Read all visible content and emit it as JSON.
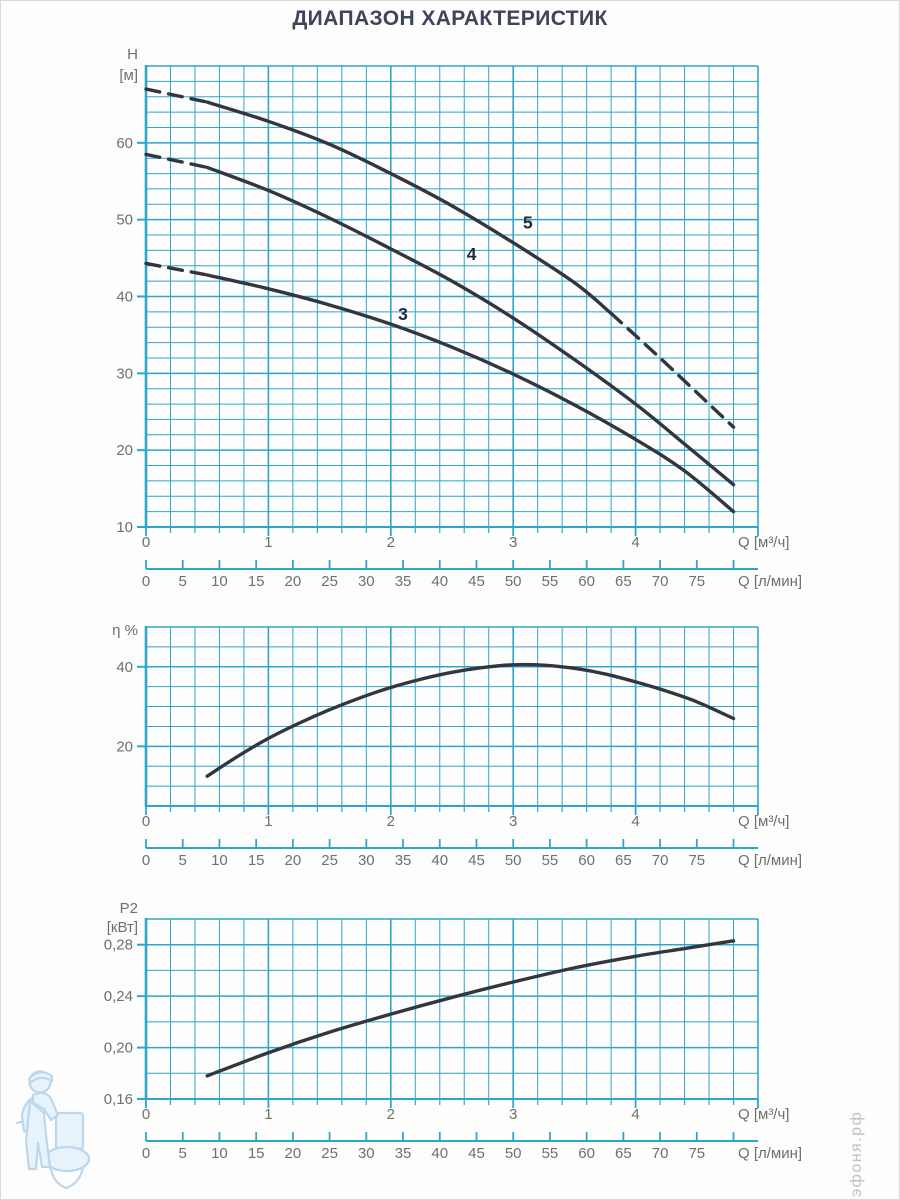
{
  "page": {
    "title": "ДИАПАЗОН ХАРАКТЕРИСТИК",
    "watermark_vertical": "эфоня.рф",
    "watermark_icon": "plumber-leaning-on-toilet"
  },
  "colors": {
    "grid": "#2ea6cb",
    "axis_text": "#6f6f6f",
    "title_text": "#3e4459",
    "curve": "#33363e",
    "curve_label": "#1f2840",
    "watermark_text": "#c1c1c1",
    "illustration_stroke": "#b6d2ea",
    "illustration_fill": "#e6f1fa",
    "background": "#fdfdfd",
    "frame": "#d8d8d8"
  },
  "x_axis": {
    "m3h_label": "Q [м³/ч]",
    "lmin_label": "Q [л/мин]",
    "m3h_ticks": [
      "0",
      "1",
      "2",
      "3",
      "4"
    ],
    "lmin_ticks": [
      "0",
      "5",
      "10",
      "15",
      "20",
      "25",
      "30",
      "35",
      "40",
      "45",
      "50",
      "55",
      "60",
      "65",
      "70",
      "75"
    ],
    "m3h_max": 5,
    "lmin_per_m3h": 16.6667,
    "lmin_tick_step": 5,
    "lmin_last_tick": 80
  },
  "chart_data": [
    {
      "type": "line",
      "name": "head-flow-curves",
      "y_title_lines": [
        "H",
        "[м]"
      ],
      "y_title_dy": [
        -7,
        14
      ],
      "y_ticks": [
        {
          "v": 60,
          "label": "60"
        },
        {
          "v": 50,
          "label": "50"
        },
        {
          "v": 40,
          "label": "40"
        },
        {
          "v": 30,
          "label": "30"
        },
        {
          "v": 20,
          "label": "20"
        },
        {
          "v": 10,
          "label": "10"
        }
      ],
      "ylim": [
        10,
        70
      ],
      "y_minor_step": 2,
      "y_major_step": 10,
      "xlim": [
        0,
        5
      ],
      "x_minor_step": 0.2,
      "series": [
        {
          "name": "3",
          "label": {
            "text": "3",
            "x": 2.1,
            "y": 37.7
          },
          "segments": [
            {
              "to": 0.5,
              "dashed": true
            },
            {
              "to": 4.8,
              "dashed": false
            }
          ],
          "points": [
            [
              0,
              44.3
            ],
            [
              0.5,
              42.8
            ],
            [
              1,
              41
            ],
            [
              1.5,
              38.9
            ],
            [
              2,
              36.4
            ],
            [
              2.5,
              33.4
            ],
            [
              3,
              29.9
            ],
            [
              3.5,
              25.9
            ],
            [
              4,
              21.4
            ],
            [
              4.4,
              17.3
            ],
            [
              4.8,
              12
            ]
          ]
        },
        {
          "name": "4",
          "label": {
            "text": "4",
            "x": 2.66,
            "y": 45.5
          },
          "segments": [
            {
              "to": 0.5,
              "dashed": true
            },
            {
              "to": 4.8,
              "dashed": false
            }
          ],
          "points": [
            [
              0,
              58.5
            ],
            [
              0.5,
              56.8
            ],
            [
              1,
              53.8
            ],
            [
              1.5,
              50.2
            ],
            [
              2,
              46.2
            ],
            [
              2.5,
              42
            ],
            [
              3,
              37.2
            ],
            [
              3.5,
              31.8
            ],
            [
              4,
              26
            ],
            [
              4.4,
              20.8
            ],
            [
              4.8,
              15.5
            ]
          ]
        },
        {
          "name": "5",
          "label": {
            "text": "5",
            "x": 3.12,
            "y": 49.6
          },
          "segments": [
            {
              "to": 0.5,
              "dashed": true
            },
            {
              "to": 3.8,
              "dashed": false
            },
            {
              "to": 4.8,
              "dashed": true
            }
          ],
          "points": [
            [
              0,
              67
            ],
            [
              0.5,
              65.3
            ],
            [
              1,
              62.8
            ],
            [
              1.5,
              59.8
            ],
            [
              2,
              56
            ],
            [
              2.5,
              51.8
            ],
            [
              3,
              47
            ],
            [
              3.5,
              41.8
            ],
            [
              3.8,
              37.8
            ],
            [
              4.2,
              32
            ],
            [
              4.5,
              27.5
            ],
            [
              4.8,
              23
            ]
          ]
        }
      ]
    },
    {
      "type": "line",
      "name": "efficiency-curve",
      "y_title_lines": [
        "η %"
      ],
      "y_title_dy": [
        8
      ],
      "y_ticks": [
        {
          "v": 40,
          "label": "40"
        },
        {
          "v": 20,
          "label": "20"
        }
      ],
      "ylim": [
        5,
        50
      ],
      "y_minor_step": 5,
      "y_major_step": 20,
      "xlim": [
        0,
        5
      ],
      "x_minor_step": 0.2,
      "series": [
        {
          "name": "eta",
          "points": [
            [
              0.5,
              12.5
            ],
            [
              0.75,
              17.5
            ],
            [
              1,
              22
            ],
            [
              1.25,
              25.8
            ],
            [
              1.5,
              29.2
            ],
            [
              1.75,
              32.2
            ],
            [
              2,
              34.8
            ],
            [
              2.25,
              36.9
            ],
            [
              2.5,
              38.6
            ],
            [
              2.75,
              39.8
            ],
            [
              3,
              40.5
            ],
            [
              3.25,
              40.4
            ],
            [
              3.5,
              39.6
            ],
            [
              3.75,
              38.2
            ],
            [
              4,
              36.2
            ],
            [
              4.25,
              33.9
            ],
            [
              4.5,
              31.2
            ],
            [
              4.8,
              27
            ]
          ]
        }
      ]
    },
    {
      "type": "line",
      "name": "power-curve",
      "y_title_lines": [
        "P2",
        "[кВт]"
      ],
      "y_title_dy": [
        -6,
        13
      ],
      "y_ticks": [
        {
          "v": 0.28,
          "label": "0,28"
        },
        {
          "v": 0.24,
          "label": "0,24"
        },
        {
          "v": 0.2,
          "label": "0,20"
        },
        {
          "v": 0.16,
          "label": "0,16"
        }
      ],
      "ylim": [
        0.16,
        0.3
      ],
      "y_minor_step": 0.02,
      "y_major_step": 0.04,
      "xlim": [
        0,
        5
      ],
      "x_minor_step": 0.2,
      "series": [
        {
          "name": "P2",
          "points": [
            [
              0.5,
              0.178
            ],
            [
              1,
              0.196
            ],
            [
              1.5,
              0.212
            ],
            [
              2,
              0.226
            ],
            [
              2.5,
              0.239
            ],
            [
              3,
              0.251
            ],
            [
              3.5,
              0.262
            ],
            [
              4,
              0.271
            ],
            [
              4.4,
              0.277
            ],
            [
              4.8,
              0.283
            ]
          ]
        }
      ]
    }
  ]
}
